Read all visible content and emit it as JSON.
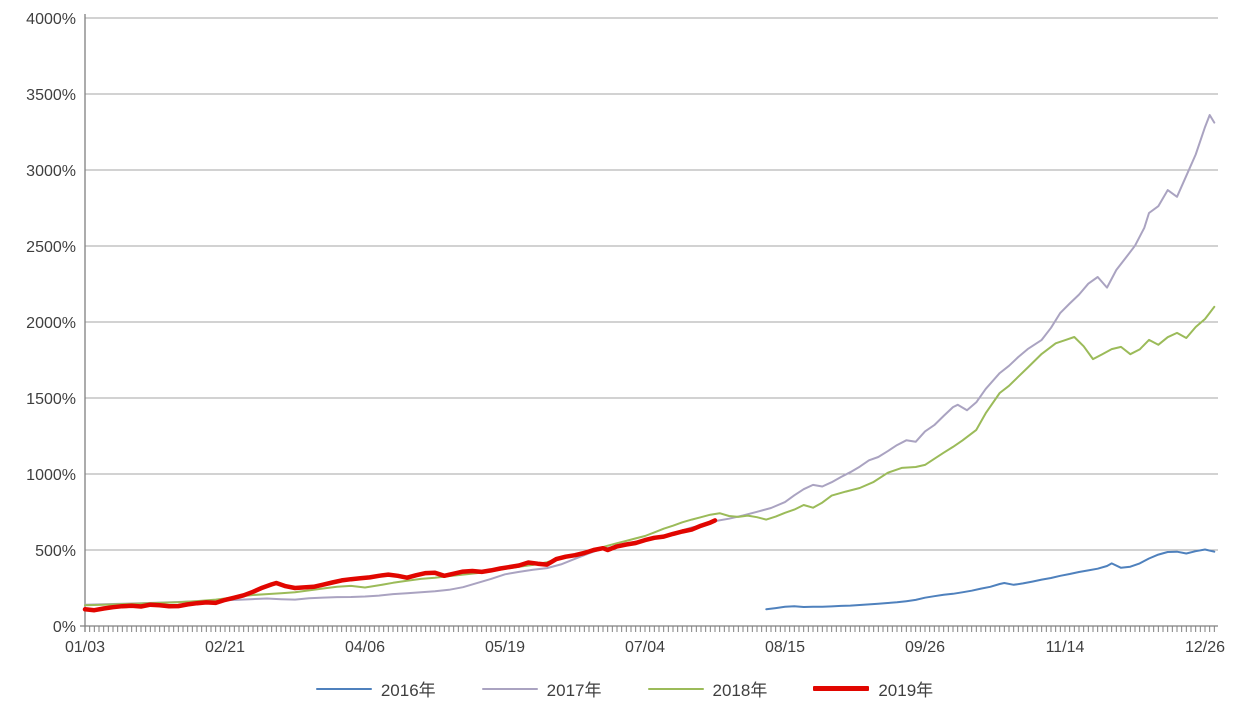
{
  "page": {
    "background": "#ffffff"
  },
  "colors": {
    "grid": "#a6a6a6",
    "axis": "#808080",
    "tick": "#808080",
    "label": "#3f3f3f"
  },
  "chart_data": {
    "type": "line",
    "title": "",
    "legend_position": "bottom",
    "grid": true,
    "y_axis": {
      "min": 0,
      "max": 4000,
      "step": 500,
      "unit": "%",
      "tick_labels": [
        "0%",
        "500%",
        "1000%",
        "1500%",
        "2000%",
        "2500%",
        "3000%",
        "3500%",
        "4000%"
      ]
    },
    "x_axis": {
      "tick_labels": [
        "01/03",
        "02/21",
        "04/06",
        "05/19",
        "07/04",
        "08/15",
        "09/26",
        "11/14",
        "12/26"
      ],
      "tick_indices": [
        0,
        30,
        60,
        90,
        120,
        150,
        180,
        210,
        240
      ],
      "minor_tick_count": 244,
      "index_range": [
        0,
        242
      ]
    },
    "series": [
      {
        "name": "2016年",
        "color": "#4f81bd",
        "stroke_width": 2,
        "points": [
          [
            146,
            110
          ],
          [
            148,
            118
          ],
          [
            150,
            126
          ],
          [
            152,
            130
          ],
          [
            154,
            125
          ],
          [
            156,
            127
          ],
          [
            158,
            126
          ],
          [
            160,
            129
          ],
          [
            162,
            132
          ],
          [
            164,
            134
          ],
          [
            166,
            138
          ],
          [
            168,
            142
          ],
          [
            170,
            147
          ],
          [
            172,
            151
          ],
          [
            174,
            156
          ],
          [
            176,
            163
          ],
          [
            178,
            172
          ],
          [
            180,
            186
          ],
          [
            182,
            196
          ],
          [
            184,
            205
          ],
          [
            186,
            212
          ],
          [
            188,
            222
          ],
          [
            190,
            232
          ],
          [
            192,
            246
          ],
          [
            194,
            258
          ],
          [
            196,
            276
          ],
          [
            197,
            283
          ],
          [
            199,
            271
          ],
          [
            201,
            280
          ],
          [
            203,
            292
          ],
          [
            205,
            305
          ],
          [
            207,
            316
          ],
          [
            209,
            330
          ],
          [
            211,
            342
          ],
          [
            213,
            355
          ],
          [
            215,
            366
          ],
          [
            217,
            377
          ],
          [
            219,
            395
          ],
          [
            220,
            412
          ],
          [
            222,
            383
          ],
          [
            224,
            390
          ],
          [
            226,
            412
          ],
          [
            228,
            444
          ],
          [
            230,
            470
          ],
          [
            232,
            487
          ],
          [
            234,
            489
          ],
          [
            236,
            477
          ],
          [
            238,
            492
          ],
          [
            240,
            503
          ],
          [
            242,
            489
          ]
        ]
      },
      {
        "name": "2017年",
        "color": "#aaa3c1",
        "stroke_width": 2,
        "points": [
          [
            0,
            140
          ],
          [
            4,
            143
          ],
          [
            8,
            146
          ],
          [
            12,
            150
          ],
          [
            16,
            154
          ],
          [
            20,
            158
          ],
          [
            24,
            163
          ],
          [
            28,
            166
          ],
          [
            30,
            169
          ],
          [
            33,
            173
          ],
          [
            36,
            177
          ],
          [
            39,
            181
          ],
          [
            42,
            176
          ],
          [
            45,
            174
          ],
          [
            48,
            182
          ],
          [
            51,
            187
          ],
          [
            54,
            190
          ],
          [
            57,
            191
          ],
          [
            60,
            194
          ],
          [
            63,
            200
          ],
          [
            66,
            210
          ],
          [
            69,
            216
          ],
          [
            72,
            222
          ],
          [
            75,
            228
          ],
          [
            78,
            238
          ],
          [
            81,
            255
          ],
          [
            84,
            282
          ],
          [
            87,
            310
          ],
          [
            90,
            340
          ],
          [
            93,
            356
          ],
          [
            96,
            370
          ],
          [
            99,
            381
          ],
          [
            102,
            405
          ],
          [
            105,
            442
          ],
          [
            108,
            478
          ],
          [
            110,
            500
          ],
          [
            113,
            520
          ],
          [
            116,
            540
          ],
          [
            118,
            555
          ],
          [
            121,
            568
          ],
          [
            124,
            590
          ],
          [
            127,
            620
          ],
          [
            130,
            648
          ],
          [
            133,
            666
          ],
          [
            135,
            690
          ],
          [
            138,
            706
          ],
          [
            141,
            727
          ],
          [
            144,
            751
          ],
          [
            147,
            776
          ],
          [
            150,
            815
          ],
          [
            152,
            860
          ],
          [
            154,
            900
          ],
          [
            156,
            928
          ],
          [
            158,
            918
          ],
          [
            160,
            946
          ],
          [
            162,
            980
          ],
          [
            164,
            1012
          ],
          [
            166,
            1048
          ],
          [
            168,
            1090
          ],
          [
            170,
            1112
          ],
          [
            172,
            1150
          ],
          [
            174,
            1190
          ],
          [
            176,
            1222
          ],
          [
            178,
            1212
          ],
          [
            180,
            1280
          ],
          [
            182,
            1322
          ],
          [
            184,
            1382
          ],
          [
            186,
            1440
          ],
          [
            187,
            1455
          ],
          [
            189,
            1420
          ],
          [
            191,
            1472
          ],
          [
            193,
            1560
          ],
          [
            196,
            1664
          ],
          [
            198,
            1712
          ],
          [
            200,
            1770
          ],
          [
            202,
            1822
          ],
          [
            205,
            1882
          ],
          [
            207,
            1962
          ],
          [
            209,
            2060
          ],
          [
            211,
            2122
          ],
          [
            213,
            2180
          ],
          [
            215,
            2252
          ],
          [
            217,
            2296
          ],
          [
            219,
            2226
          ],
          [
            221,
            2342
          ],
          [
            223,
            2422
          ],
          [
            225,
            2502
          ],
          [
            227,
            2620
          ],
          [
            228,
            2717
          ],
          [
            230,
            2762
          ],
          [
            232,
            2868
          ],
          [
            234,
            2824
          ],
          [
            236,
            2962
          ],
          [
            238,
            3102
          ],
          [
            240,
            3282
          ],
          [
            241,
            3362
          ],
          [
            242,
            3312
          ]
        ]
      },
      {
        "name": "2018年",
        "color": "#9bbb59",
        "stroke_width": 2,
        "points": [
          [
            0,
            136
          ],
          [
            4,
            140
          ],
          [
            8,
            144
          ],
          [
            12,
            148
          ],
          [
            16,
            152
          ],
          [
            20,
            156
          ],
          [
            24,
            164
          ],
          [
            28,
            174
          ],
          [
            30,
            181
          ],
          [
            33,
            194
          ],
          [
            36,
            204
          ],
          [
            39,
            210
          ],
          [
            42,
            216
          ],
          [
            45,
            222
          ],
          [
            48,
            234
          ],
          [
            51,
            247
          ],
          [
            54,
            258
          ],
          [
            57,
            264
          ],
          [
            60,
            253
          ],
          [
            63,
            268
          ],
          [
            66,
            284
          ],
          [
            69,
            298
          ],
          [
            72,
            310
          ],
          [
            75,
            318
          ],
          [
            78,
            328
          ],
          [
            81,
            338
          ],
          [
            84,
            348
          ],
          [
            87,
            360
          ],
          [
            90,
            376
          ],
          [
            93,
            390
          ],
          [
            96,
            402
          ],
          [
            99,
            420
          ],
          [
            102,
            448
          ],
          [
            105,
            468
          ],
          [
            108,
            490
          ],
          [
            110,
            510
          ],
          [
            112,
            528
          ],
          [
            114,
            545
          ],
          [
            116,
            560
          ],
          [
            118,
            576
          ],
          [
            120,
            592
          ],
          [
            122,
            616
          ],
          [
            124,
            640
          ],
          [
            126,
            660
          ],
          [
            128,
            682
          ],
          [
            130,
            700
          ],
          [
            132,
            716
          ],
          [
            134,
            732
          ],
          [
            136,
            742
          ],
          [
            138,
            724
          ],
          [
            140,
            718
          ],
          [
            142,
            726
          ],
          [
            144,
            716
          ],
          [
            146,
            700
          ],
          [
            148,
            720
          ],
          [
            150,
            745
          ],
          [
            152,
            766
          ],
          [
            154,
            796
          ],
          [
            156,
            778
          ],
          [
            158,
            812
          ],
          [
            160,
            858
          ],
          [
            163,
            884
          ],
          [
            166,
            908
          ],
          [
            169,
            948
          ],
          [
            172,
            1008
          ],
          [
            175,
            1040
          ],
          [
            178,
            1046
          ],
          [
            180,
            1060
          ],
          [
            182,
            1100
          ],
          [
            184,
            1140
          ],
          [
            186,
            1178
          ],
          [
            188,
            1220
          ],
          [
            191,
            1290
          ],
          [
            193,
            1400
          ],
          [
            196,
            1533
          ],
          [
            198,
            1580
          ],
          [
            200,
            1640
          ],
          [
            202,
            1700
          ],
          [
            205,
            1790
          ],
          [
            208,
            1860
          ],
          [
            210,
            1880
          ],
          [
            212,
            1901
          ],
          [
            214,
            1840
          ],
          [
            216,
            1756
          ],
          [
            218,
            1788
          ],
          [
            220,
            1822
          ],
          [
            222,
            1836
          ],
          [
            224,
            1788
          ],
          [
            226,
            1820
          ],
          [
            228,
            1882
          ],
          [
            230,
            1850
          ],
          [
            232,
            1900
          ],
          [
            234,
            1928
          ],
          [
            236,
            1895
          ],
          [
            238,
            1967
          ],
          [
            240,
            2020
          ],
          [
            241,
            2060
          ],
          [
            242,
            2100
          ]
        ]
      },
      {
        "name": "2019年",
        "color": "#e10600",
        "stroke_width": 4.5,
        "points": [
          [
            0,
            110
          ],
          [
            2,
            104
          ],
          [
            4,
            115
          ],
          [
            6,
            124
          ],
          [
            8,
            130
          ],
          [
            10,
            133
          ],
          [
            12,
            128
          ],
          [
            14,
            140
          ],
          [
            16,
            136
          ],
          [
            18,
            130
          ],
          [
            20,
            131
          ],
          [
            22,
            142
          ],
          [
            24,
            150
          ],
          [
            26,
            155
          ],
          [
            28,
            152
          ],
          [
            30,
            172
          ],
          [
            32,
            186
          ],
          [
            34,
            202
          ],
          [
            36,
            225
          ],
          [
            38,
            252
          ],
          [
            40,
            274
          ],
          [
            41,
            283
          ],
          [
            43,
            262
          ],
          [
            45,
            250
          ],
          [
            47,
            254
          ],
          [
            49,
            258
          ],
          [
            51,
            272
          ],
          [
            53,
            286
          ],
          [
            55,
            300
          ],
          [
            57,
            308
          ],
          [
            59,
            314
          ],
          [
            61,
            320
          ],
          [
            63,
            330
          ],
          [
            65,
            338
          ],
          [
            67,
            330
          ],
          [
            69,
            318
          ],
          [
            71,
            334
          ],
          [
            73,
            348
          ],
          [
            75,
            350
          ],
          [
            77,
            330
          ],
          [
            79,
            344
          ],
          [
            81,
            358
          ],
          [
            83,
            362
          ],
          [
            85,
            356
          ],
          [
            87,
            366
          ],
          [
            89,
            378
          ],
          [
            91,
            388
          ],
          [
            93,
            398
          ],
          [
            95,
            418
          ],
          [
            97,
            410
          ],
          [
            99,
            404
          ],
          [
            101,
            440
          ],
          [
            103,
            456
          ],
          [
            105,
            466
          ],
          [
            107,
            480
          ],
          [
            109,
            500
          ],
          [
            111,
            512
          ],
          [
            112,
            500
          ],
          [
            114,
            524
          ],
          [
            116,
            536
          ],
          [
            118,
            546
          ],
          [
            120,
            565
          ],
          [
            122,
            580
          ],
          [
            124,
            588
          ],
          [
            126,
            606
          ],
          [
            128,
            622
          ],
          [
            130,
            634
          ],
          [
            132,
            660
          ],
          [
            134,
            680
          ],
          [
            135,
            695
          ]
        ]
      }
    ]
  }
}
